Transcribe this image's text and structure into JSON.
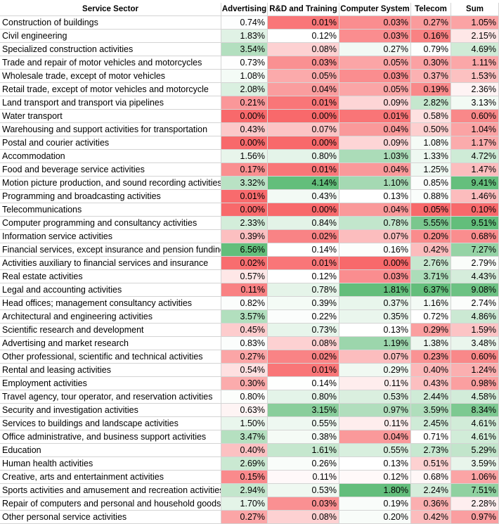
{
  "columns": [
    "Service Sector",
    "Advertising",
    "R&D and Training",
    "Computer System",
    "Telecom",
    "Sum"
  ],
  "palette": {
    "low": "#f8696b",
    "mid": "#ffffff",
    "high": "#63be7b"
  },
  "rows": [
    {
      "sector": "Construction of buildings",
      "v": [
        "0.74%",
        "0.01%",
        "0.03%",
        "0.27%",
        "1.05%"
      ]
    },
    {
      "sector": "Civil engineering",
      "v": [
        "1.83%",
        "0.12%",
        "0.03%",
        "0.16%",
        "2.15%"
      ]
    },
    {
      "sector": "Specialized construction activities",
      "v": [
        "3.54%",
        "0.08%",
        "0.27%",
        "0.79%",
        "4.69%"
      ]
    },
    {
      "sector": "Trade and repair of motor vehicles and motorcycles",
      "v": [
        "0.73%",
        "0.03%",
        "0.05%",
        "0.30%",
        "1.11%"
      ]
    },
    {
      "sector": "Wholesale trade, except of motor vehicles",
      "v": [
        "1.08%",
        "0.05%",
        "0.03%",
        "0.37%",
        "1.53%"
      ]
    },
    {
      "sector": "Retail trade, except of motor vehicles and motorcycle",
      "v": [
        "2.08%",
        "0.04%",
        "0.05%",
        "0.19%",
        "2.36%"
      ]
    },
    {
      "sector": "Land transport and transport via pipelines",
      "v": [
        "0.21%",
        "0.01%",
        "0.09%",
        "2.82%",
        "3.13%"
      ]
    },
    {
      "sector": "Water transport",
      "v": [
        "0.00%",
        "0.00%",
        "0.01%",
        "0.58%",
        "0.60%"
      ]
    },
    {
      "sector": "Warehousing and support activities for transportation",
      "v": [
        "0.43%",
        "0.07%",
        "0.04%",
        "0.50%",
        "1.04%"
      ]
    },
    {
      "sector": "Postal and courier activities",
      "v": [
        "0.00%",
        "0.00%",
        "0.09%",
        "1.08%",
        "1.17%"
      ]
    },
    {
      "sector": "Accommodation",
      "v": [
        "1.56%",
        "0.80%",
        "1.03%",
        "1.33%",
        "4.72%"
      ]
    },
    {
      "sector": "Food and beverage service activities",
      "v": [
        "0.17%",
        "0.01%",
        "0.04%",
        "1.25%",
        "1.47%"
      ]
    },
    {
      "sector": "Motion picture production, and sound recording activities",
      "v": [
        "3.32%",
        "4.14%",
        "1.10%",
        "0.85%",
        "9.41%"
      ]
    },
    {
      "sector": "Programming and broadcasting activities",
      "v": [
        "0.01%",
        "0.43%",
        "0.13%",
        "0.88%",
        "1.46%"
      ]
    },
    {
      "sector": "Telecommunications",
      "v": [
        "0.00%",
        "0.00%",
        "0.04%",
        "0.05%",
        "0.10%"
      ]
    },
    {
      "sector": "Computer programming and consultancy  activities",
      "v": [
        "2.33%",
        "0.84%",
        "0.78%",
        "5.55%",
        "9.51%"
      ]
    },
    {
      "sector": "Information service activities",
      "v": [
        "0.39%",
        "0.02%",
        "0.07%",
        "0.20%",
        "0.68%"
      ]
    },
    {
      "sector": "Financial services, except insurance and pension funding",
      "v": [
        "6.56%",
        "0.14%",
        "0.16%",
        "0.42%",
        "7.27%"
      ]
    },
    {
      "sector": "Activities auxiliary to financial services and insurance",
      "v": [
        "0.02%",
        "0.01%",
        "0.00%",
        "2.76%",
        "2.79%"
      ]
    },
    {
      "sector": "Real estate activities",
      "v": [
        "0.57%",
        "0.12%",
        "0.03%",
        "3.71%",
        "4.43%"
      ]
    },
    {
      "sector": "Legal and accounting activities",
      "v": [
        "0.11%",
        "0.78%",
        "1.81%",
        "6.37%",
        "9.08%"
      ]
    },
    {
      "sector": "Head offices; management consultancy activities",
      "v": [
        "0.82%",
        "0.39%",
        "0.37%",
        "1.16%",
        "2.74%"
      ]
    },
    {
      "sector": "Architectural and engineering activities",
      "v": [
        "3.57%",
        "0.22%",
        "0.35%",
        "0.72%",
        "4.86%"
      ]
    },
    {
      "sector": "Scientific research and development",
      "v": [
        "0.45%",
        "0.73%",
        "0.13%",
        "0.29%",
        "1.59%"
      ]
    },
    {
      "sector": "Advertising and market research",
      "v": [
        "0.83%",
        "0.08%",
        "1.19%",
        "1.38%",
        "3.48%"
      ]
    },
    {
      "sector": "Other professional, scientific and technical activities",
      "v": [
        "0.27%",
        "0.02%",
        "0.07%",
        "0.23%",
        "0.60%"
      ]
    },
    {
      "sector": "Rental and leasing activities",
      "v": [
        "0.54%",
        "0.01%",
        "0.29%",
        "0.40%",
        "1.24%"
      ]
    },
    {
      "sector": "Employment activities",
      "v": [
        "0.30%",
        "0.14%",
        "0.11%",
        "0.43%",
        "0.98%"
      ]
    },
    {
      "sector": "Travel agency, tour operator, and reservation  activities",
      "v": [
        "0.80%",
        "0.80%",
        "0.53%",
        "2.44%",
        "4.58%"
      ]
    },
    {
      "sector": "Security and investigation activities",
      "v": [
        "0.63%",
        "3.15%",
        "0.97%",
        "3.59%",
        "8.34%"
      ]
    },
    {
      "sector": "Services to buildings and landscape activities",
      "v": [
        "1.50%",
        "0.55%",
        "0.11%",
        "2.45%",
        "4.61%"
      ]
    },
    {
      "sector": "Office administrative, and business support activities",
      "v": [
        "3.47%",
        "0.38%",
        "0.04%",
        "0.71%",
        "4.61%"
      ]
    },
    {
      "sector": "Education",
      "v": [
        "0.40%",
        "1.61%",
        "0.55%",
        "2.73%",
        "5.29%"
      ]
    },
    {
      "sector": "Human health activities",
      "v": [
        "2.69%",
        "0.26%",
        "0.13%",
        "0.51%",
        "3.59%"
      ]
    },
    {
      "sector": "Creative, arts and entertainment activities",
      "v": [
        "0.15%",
        "0.11%",
        "0.12%",
        "0.68%",
        "1.06%"
      ]
    },
    {
      "sector": "Sports activities and amusement and recreation activities",
      "v": [
        "2.94%",
        "0.53%",
        "1.80%",
        "2.24%",
        "7.51%"
      ]
    },
    {
      "sector": "Repair of computers and personal and household goods",
      "v": [
        "1.70%",
        "0.03%",
        "0.19%",
        "0.36%",
        "2.28%"
      ]
    },
    {
      "sector": "Other personal service activities",
      "v": [
        "0.27%",
        "0.08%",
        "0.20%",
        "0.42%",
        "0.97%"
      ]
    }
  ]
}
